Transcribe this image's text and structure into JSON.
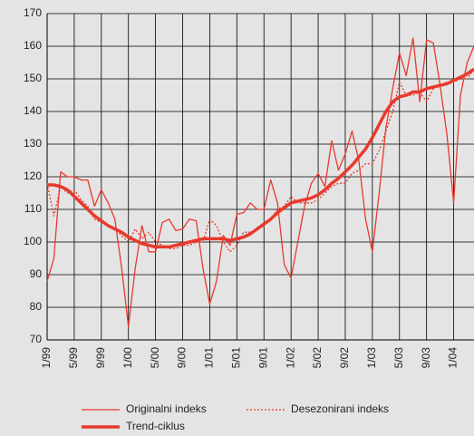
{
  "chart_data": {
    "type": "line",
    "categories": [
      "1/99",
      null,
      null,
      null,
      "5/99",
      null,
      null,
      null,
      "9/99",
      null,
      null,
      null,
      "1/00",
      null,
      null,
      null,
      "5/00",
      null,
      null,
      null,
      "9/00",
      null,
      null,
      null,
      "1/01",
      null,
      null,
      null,
      "5/01",
      null,
      null,
      null,
      "9/01",
      null,
      null,
      null,
      "1/02",
      null,
      null,
      null,
      "5/02",
      null,
      null,
      null,
      "9/02",
      null,
      null,
      null,
      "1/03",
      null,
      null,
      null,
      "5/03",
      null,
      null,
      null,
      "9/03",
      null,
      null,
      null,
      "1/04",
      null,
      null,
      null
    ],
    "series": [
      {
        "name": "Originalni indeks",
        "color": "#e8392d",
        "width": 1.3,
        "dash": "none",
        "values": [
          88,
          95,
          121.5,
          120,
          120,
          119,
          119,
          111,
          116,
          112,
          107,
          92,
          74,
          92,
          105,
          97,
          97,
          106,
          107,
          103.5,
          104,
          107,
          106.5,
          92,
          81,
          88,
          102,
          99,
          108.5,
          109,
          112,
          110,
          110,
          119,
          112,
          93,
          89,
          100,
          111,
          118,
          121,
          117,
          131,
          122,
          127,
          134,
          125,
          107,
          97,
          115,
          135,
          147,
          158,
          151,
          162.5,
          143,
          162,
          161,
          148,
          133,
          112,
          145,
          155,
          160
        ]
      },
      {
        "name": "Desezonirani indeks",
        "color": "#e8392d",
        "width": 1.3,
        "dash": "2 2",
        "values": [
          118,
          108,
          117,
          115,
          116,
          113,
          111,
          107,
          106,
          105,
          104,
          102,
          100,
          104,
          101,
          103,
          100,
          99,
          98,
          98,
          99,
          99,
          100,
          100,
          107,
          105,
          100,
          97,
          99,
          103,
          103,
          104,
          105,
          107,
          110,
          111,
          114,
          112,
          112,
          112,
          113,
          115,
          117,
          118,
          118,
          121,
          122,
          124,
          124,
          128,
          134,
          140,
          149,
          145,
          145,
          146,
          143,
          147,
          148,
          149,
          149,
          150,
          150,
          153
        ]
      },
      {
        "name": "Trend-ciklus",
        "color": "#e8392d",
        "width": 3.5,
        "dash": "none",
        "values": [
          117.5,
          117.5,
          117,
          116,
          114,
          112,
          110,
          108,
          106.5,
          105,
          104,
          103,
          101.5,
          100.5,
          99.5,
          99,
          98.5,
          98.5,
          98.5,
          99,
          99.5,
          100,
          100.5,
          101,
          101,
          101,
          101,
          100.5,
          101,
          101.5,
          102.5,
          104,
          105.5,
          107,
          109,
          110.5,
          112,
          112.5,
          113,
          113.5,
          114.5,
          116,
          118,
          119.5,
          121.5,
          123.5,
          126,
          128.5,
          132,
          136,
          140,
          143,
          144.5,
          145,
          146,
          146,
          147,
          147.5,
          148,
          148.5,
          149.5,
          150.5,
          151.5,
          153
        ]
      }
    ],
    "ylim": [
      70,
      170
    ],
    "yticks": [
      70,
      80,
      90,
      100,
      110,
      120,
      130,
      140,
      150,
      160,
      170
    ],
    "grid": true
  }
}
